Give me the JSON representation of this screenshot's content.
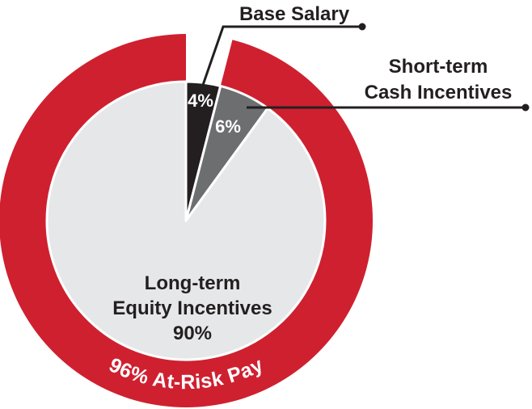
{
  "chart_data": {
    "type": "pie",
    "categories": [
      "Base Salary",
      "Short-term\nCash Incentives",
      "Long-term\nEquity Incentives"
    ],
    "values": [
      4,
      6,
      90
    ],
    "value_labels": [
      "4%",
      "6%",
      "90%"
    ],
    "colors": [
      "#231f20",
      "#6d6e70",
      "#e6e7e8"
    ],
    "ring": {
      "value": 96,
      "label": "96% At-Risk Pay",
      "color": "#cf2030"
    }
  }
}
